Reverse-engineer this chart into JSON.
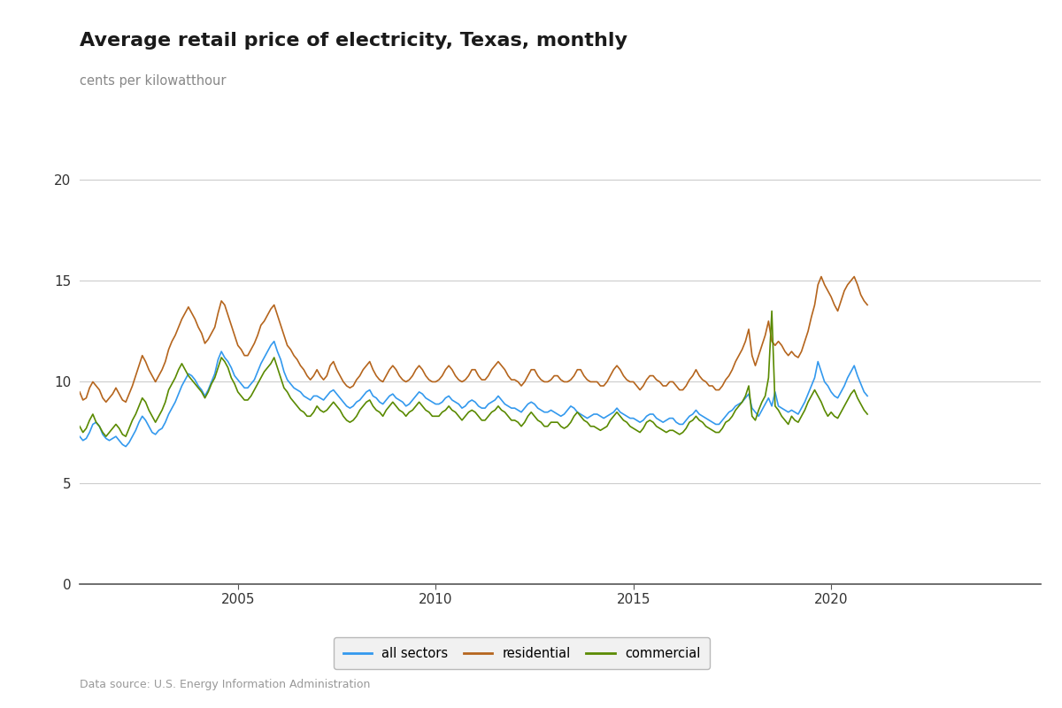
{
  "title": "Average retail price of electricity, Texas, monthly",
  "ylabel": "cents per kilowatthour",
  "title_color": "#1a1a1a",
  "subtitle_color": "#888888",
  "background_color": "#ffffff",
  "grid_color": "#cccccc",
  "line_colors": {
    "all_sectors": "#3399ee",
    "residential": "#b5651d",
    "commercial": "#5a8a00"
  },
  "yticks": [
    0,
    5,
    10,
    15,
    20
  ],
  "xticks": [
    2005,
    2010,
    2015,
    2020
  ],
  "ylim": [
    0,
    21
  ],
  "xlim_start": 2001.0,
  "xlim_end": 2025.3,
  "data_source": "Data source: U.S. Energy Information Administration",
  "start_year": 2001.0,
  "all_sectors": [
    7.3,
    7.1,
    7.2,
    7.5,
    7.9,
    8.0,
    7.8,
    7.4,
    7.2,
    7.1,
    7.2,
    7.3,
    7.1,
    6.9,
    6.8,
    7.0,
    7.3,
    7.6,
    8.0,
    8.3,
    8.1,
    7.8,
    7.5,
    7.4,
    7.6,
    7.7,
    8.0,
    8.4,
    8.7,
    9.0,
    9.4,
    9.8,
    10.1,
    10.4,
    10.3,
    10.1,
    9.8,
    9.6,
    9.3,
    9.6,
    10.0,
    10.4,
    11.1,
    11.5,
    11.2,
    11.0,
    10.7,
    10.3,
    10.1,
    9.9,
    9.7,
    9.7,
    9.9,
    10.1,
    10.5,
    10.9,
    11.2,
    11.5,
    11.8,
    12.0,
    11.5,
    11.1,
    10.5,
    10.1,
    9.9,
    9.7,
    9.6,
    9.5,
    9.3,
    9.2,
    9.1,
    9.3,
    9.3,
    9.2,
    9.1,
    9.3,
    9.5,
    9.6,
    9.4,
    9.2,
    9.0,
    8.8,
    8.7,
    8.8,
    9.0,
    9.1,
    9.3,
    9.5,
    9.6,
    9.3,
    9.2,
    9.0,
    8.9,
    9.1,
    9.3,
    9.4,
    9.2,
    9.1,
    9.0,
    8.8,
    8.9,
    9.1,
    9.3,
    9.5,
    9.4,
    9.2,
    9.1,
    9.0,
    8.9,
    8.9,
    9.0,
    9.2,
    9.3,
    9.1,
    9.0,
    8.9,
    8.7,
    8.8,
    9.0,
    9.1,
    9.0,
    8.8,
    8.7,
    8.7,
    8.9,
    9.0,
    9.1,
    9.3,
    9.1,
    8.9,
    8.8,
    8.7,
    8.7,
    8.6,
    8.5,
    8.7,
    8.9,
    9.0,
    8.9,
    8.7,
    8.6,
    8.5,
    8.5,
    8.6,
    8.5,
    8.4,
    8.3,
    8.4,
    8.6,
    8.8,
    8.7,
    8.5,
    8.4,
    8.3,
    8.2,
    8.3,
    8.4,
    8.4,
    8.3,
    8.2,
    8.3,
    8.4,
    8.5,
    8.7,
    8.5,
    8.4,
    8.3,
    8.2,
    8.2,
    8.1,
    8.0,
    8.1,
    8.3,
    8.4,
    8.4,
    8.2,
    8.1,
    8.0,
    8.1,
    8.2,
    8.2,
    8.0,
    7.9,
    7.9,
    8.1,
    8.3,
    8.4,
    8.6,
    8.4,
    8.3,
    8.2,
    8.1,
    8.0,
    7.9,
    7.9,
    8.1,
    8.3,
    8.5,
    8.6,
    8.8,
    8.9,
    9.0,
    9.2,
    9.4,
    8.7,
    8.5,
    8.3,
    8.6,
    8.9,
    9.2,
    8.8,
    9.5,
    8.8,
    8.7,
    8.6,
    8.5,
    8.6,
    8.5,
    8.4,
    8.7,
    9.0,
    9.4,
    9.8,
    10.2,
    11.0,
    10.5,
    10.0,
    9.8,
    9.5,
    9.3,
    9.2,
    9.5,
    9.8,
    10.2,
    10.5,
    10.8,
    10.3,
    9.9,
    9.5,
    9.3
  ],
  "residential": [
    9.5,
    9.1,
    9.2,
    9.7,
    10.0,
    9.8,
    9.6,
    9.2,
    9.0,
    9.2,
    9.4,
    9.7,
    9.4,
    9.1,
    9.0,
    9.4,
    9.8,
    10.3,
    10.8,
    11.3,
    11.0,
    10.6,
    10.3,
    10.0,
    10.3,
    10.6,
    11.0,
    11.6,
    12.0,
    12.3,
    12.7,
    13.1,
    13.4,
    13.7,
    13.4,
    13.1,
    12.7,
    12.4,
    11.9,
    12.1,
    12.4,
    12.7,
    13.4,
    14.0,
    13.8,
    13.3,
    12.8,
    12.3,
    11.8,
    11.6,
    11.3,
    11.3,
    11.6,
    11.9,
    12.3,
    12.8,
    13.0,
    13.3,
    13.6,
    13.8,
    13.3,
    12.8,
    12.3,
    11.8,
    11.6,
    11.3,
    11.1,
    10.8,
    10.6,
    10.3,
    10.1,
    10.3,
    10.6,
    10.3,
    10.1,
    10.3,
    10.8,
    11.0,
    10.6,
    10.3,
    10.0,
    9.8,
    9.7,
    9.8,
    10.1,
    10.3,
    10.6,
    10.8,
    11.0,
    10.6,
    10.3,
    10.1,
    10.0,
    10.3,
    10.6,
    10.8,
    10.6,
    10.3,
    10.1,
    10.0,
    10.1,
    10.3,
    10.6,
    10.8,
    10.6,
    10.3,
    10.1,
    10.0,
    10.0,
    10.1,
    10.3,
    10.6,
    10.8,
    10.6,
    10.3,
    10.1,
    10.0,
    10.1,
    10.3,
    10.6,
    10.6,
    10.3,
    10.1,
    10.1,
    10.3,
    10.6,
    10.8,
    11.0,
    10.8,
    10.6,
    10.3,
    10.1,
    10.1,
    10.0,
    9.8,
    10.0,
    10.3,
    10.6,
    10.6,
    10.3,
    10.1,
    10.0,
    10.0,
    10.1,
    10.3,
    10.3,
    10.1,
    10.0,
    10.0,
    10.1,
    10.3,
    10.6,
    10.6,
    10.3,
    10.1,
    10.0,
    10.0,
    10.0,
    9.8,
    9.8,
    10.0,
    10.3,
    10.6,
    10.8,
    10.6,
    10.3,
    10.1,
    10.0,
    10.0,
    9.8,
    9.6,
    9.8,
    10.1,
    10.3,
    10.3,
    10.1,
    10.0,
    9.8,
    9.8,
    10.0,
    10.0,
    9.8,
    9.6,
    9.6,
    9.8,
    10.1,
    10.3,
    10.6,
    10.3,
    10.1,
    10.0,
    9.8,
    9.8,
    9.6,
    9.6,
    9.8,
    10.1,
    10.3,
    10.6,
    11.0,
    11.3,
    11.6,
    12.0,
    12.6,
    11.3,
    10.8,
    11.3,
    11.8,
    12.3,
    13.0,
    12.0,
    11.8,
    12.0,
    11.8,
    11.5,
    11.3,
    11.5,
    11.3,
    11.2,
    11.5,
    12.0,
    12.5,
    13.2,
    13.8,
    14.8,
    15.2,
    14.8,
    14.5,
    14.2,
    13.8,
    13.5,
    14.0,
    14.5,
    14.8,
    15.0,
    15.2,
    14.8,
    14.3,
    14.0,
    13.8
  ],
  "commercial": [
    7.8,
    7.5,
    7.7,
    8.1,
    8.4,
    8.0,
    7.8,
    7.5,
    7.3,
    7.5,
    7.7,
    7.9,
    7.7,
    7.4,
    7.3,
    7.7,
    8.1,
    8.4,
    8.8,
    9.2,
    9.0,
    8.6,
    8.3,
    8.0,
    8.3,
    8.6,
    9.0,
    9.6,
    9.9,
    10.2,
    10.6,
    10.9,
    10.6,
    10.3,
    10.1,
    9.9,
    9.7,
    9.5,
    9.2,
    9.5,
    9.9,
    10.2,
    10.7,
    11.2,
    11.0,
    10.7,
    10.2,
    9.9,
    9.5,
    9.3,
    9.1,
    9.1,
    9.3,
    9.6,
    9.9,
    10.2,
    10.5,
    10.7,
    10.9,
    11.2,
    10.7,
    10.2,
    9.7,
    9.5,
    9.2,
    9.0,
    8.8,
    8.6,
    8.5,
    8.3,
    8.3,
    8.5,
    8.8,
    8.6,
    8.5,
    8.6,
    8.8,
    9.0,
    8.8,
    8.6,
    8.3,
    8.1,
    8.0,
    8.1,
    8.3,
    8.6,
    8.8,
    9.0,
    9.1,
    8.8,
    8.6,
    8.5,
    8.3,
    8.6,
    8.8,
    9.0,
    8.8,
    8.6,
    8.5,
    8.3,
    8.5,
    8.6,
    8.8,
    9.0,
    8.8,
    8.6,
    8.5,
    8.3,
    8.3,
    8.3,
    8.5,
    8.6,
    8.8,
    8.6,
    8.5,
    8.3,
    8.1,
    8.3,
    8.5,
    8.6,
    8.5,
    8.3,
    8.1,
    8.1,
    8.3,
    8.5,
    8.6,
    8.8,
    8.6,
    8.5,
    8.3,
    8.1,
    8.1,
    8.0,
    7.8,
    8.0,
    8.3,
    8.5,
    8.3,
    8.1,
    8.0,
    7.8,
    7.8,
    8.0,
    8.0,
    8.0,
    7.8,
    7.7,
    7.8,
    8.0,
    8.3,
    8.5,
    8.3,
    8.1,
    8.0,
    7.8,
    7.8,
    7.7,
    7.6,
    7.7,
    7.8,
    8.1,
    8.3,
    8.5,
    8.3,
    8.1,
    8.0,
    7.8,
    7.7,
    7.6,
    7.5,
    7.7,
    8.0,
    8.1,
    8.0,
    7.8,
    7.7,
    7.6,
    7.5,
    7.6,
    7.6,
    7.5,
    7.4,
    7.5,
    7.7,
    8.0,
    8.1,
    8.3,
    8.1,
    8.0,
    7.8,
    7.7,
    7.6,
    7.5,
    7.5,
    7.7,
    8.0,
    8.1,
    8.3,
    8.6,
    8.8,
    9.0,
    9.3,
    9.8,
    8.3,
    8.1,
    8.6,
    9.0,
    9.3,
    10.2,
    13.5,
    8.8,
    8.6,
    8.3,
    8.1,
    7.9,
    8.3,
    8.1,
    8.0,
    8.3,
    8.6,
    9.0,
    9.3,
    9.6,
    9.3,
    9.0,
    8.6,
    8.3,
    8.5,
    8.3,
    8.2,
    8.5,
    8.8,
    9.1,
    9.4,
    9.6,
    9.2,
    8.9,
    8.6,
    8.4
  ]
}
